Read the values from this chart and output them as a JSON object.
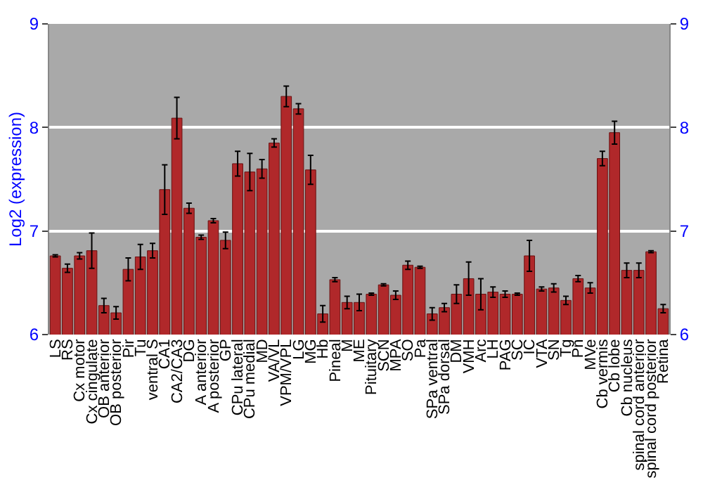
{
  "chart_data": {
    "type": "bar",
    "ylabel": "Log2 (expression)",
    "categories": [
      "LS",
      "RS",
      "Cx motor",
      "Cx cingulate",
      "OB anterior",
      "OB posterior",
      "Pir",
      "Tu",
      "ventral S",
      "CA1",
      "CA2/CA3",
      "DG",
      "A anterior",
      "A posterior",
      "GP",
      "CPu lateral",
      "CPu medial",
      "MD",
      "VA/VL",
      "VPM/VPL",
      "LG",
      "MG",
      "Hb",
      "Pineal",
      "M",
      "ME",
      "Pituitary",
      "SCN",
      "MPA",
      "SO",
      "Pa",
      "SPa ventral",
      "SPa dorsal",
      "DM",
      "VMH",
      "Arc",
      "LH",
      "PAG",
      "SC",
      "IC",
      "VTA",
      "SN",
      "Tg",
      "Pn",
      "MVe",
      "Cb vermis",
      "Cb lobe",
      "Cb nucleus",
      "spinal cord anterior",
      "spinal cord posterior",
      "Retina"
    ],
    "series": [
      {
        "color": "#b0282a",
        "values": [
          6.76,
          6.64,
          6.76,
          6.81,
          6.28,
          6.21,
          6.63,
          6.75,
          6.81,
          7.4,
          8.09,
          7.22,
          6.94,
          7.1,
          6.91,
          7.65,
          7.57,
          7.6,
          7.85,
          8.3,
          8.18,
          7.59,
          6.2,
          6.53,
          6.31,
          6.31,
          6.39,
          6.48,
          6.38,
          6.67,
          6.65,
          6.2,
          6.26,
          6.39,
          6.54,
          6.39,
          6.41,
          6.39,
          6.39,
          6.76,
          6.44,
          6.45,
          6.33,
          6.54,
          6.45,
          7.7,
          7.95,
          6.62,
          6.62,
          6.8,
          6.25
        ],
        "errors": [
          0.01,
          0.04,
          0.03,
          0.17,
          0.07,
          0.06,
          0.11,
          0.12,
          0.07,
          0.24,
          0.2,
          0.05,
          0.02,
          0.02,
          0.08,
          0.12,
          0.18,
          0.09,
          0.04,
          0.1,
          0.05,
          0.14,
          0.08,
          0.02,
          0.06,
          0.08,
          0.01,
          0.01,
          0.04,
          0.04,
          0.01,
          0.06,
          0.04,
          0.09,
          0.16,
          0.15,
          0.05,
          0.03,
          0.01,
          0.15,
          0.02,
          0.04,
          0.04,
          0.03,
          0.05,
          0.07,
          0.11,
          0.07,
          0.07,
          0.01,
          0.04
        ]
      }
    ],
    "ylim": [
      6,
      9
    ],
    "yticks": [
      6,
      7,
      8,
      9
    ],
    "y2lim": [
      6,
      9
    ],
    "y2ticks": [
      6,
      7,
      8,
      9
    ],
    "grid": "y"
  }
}
